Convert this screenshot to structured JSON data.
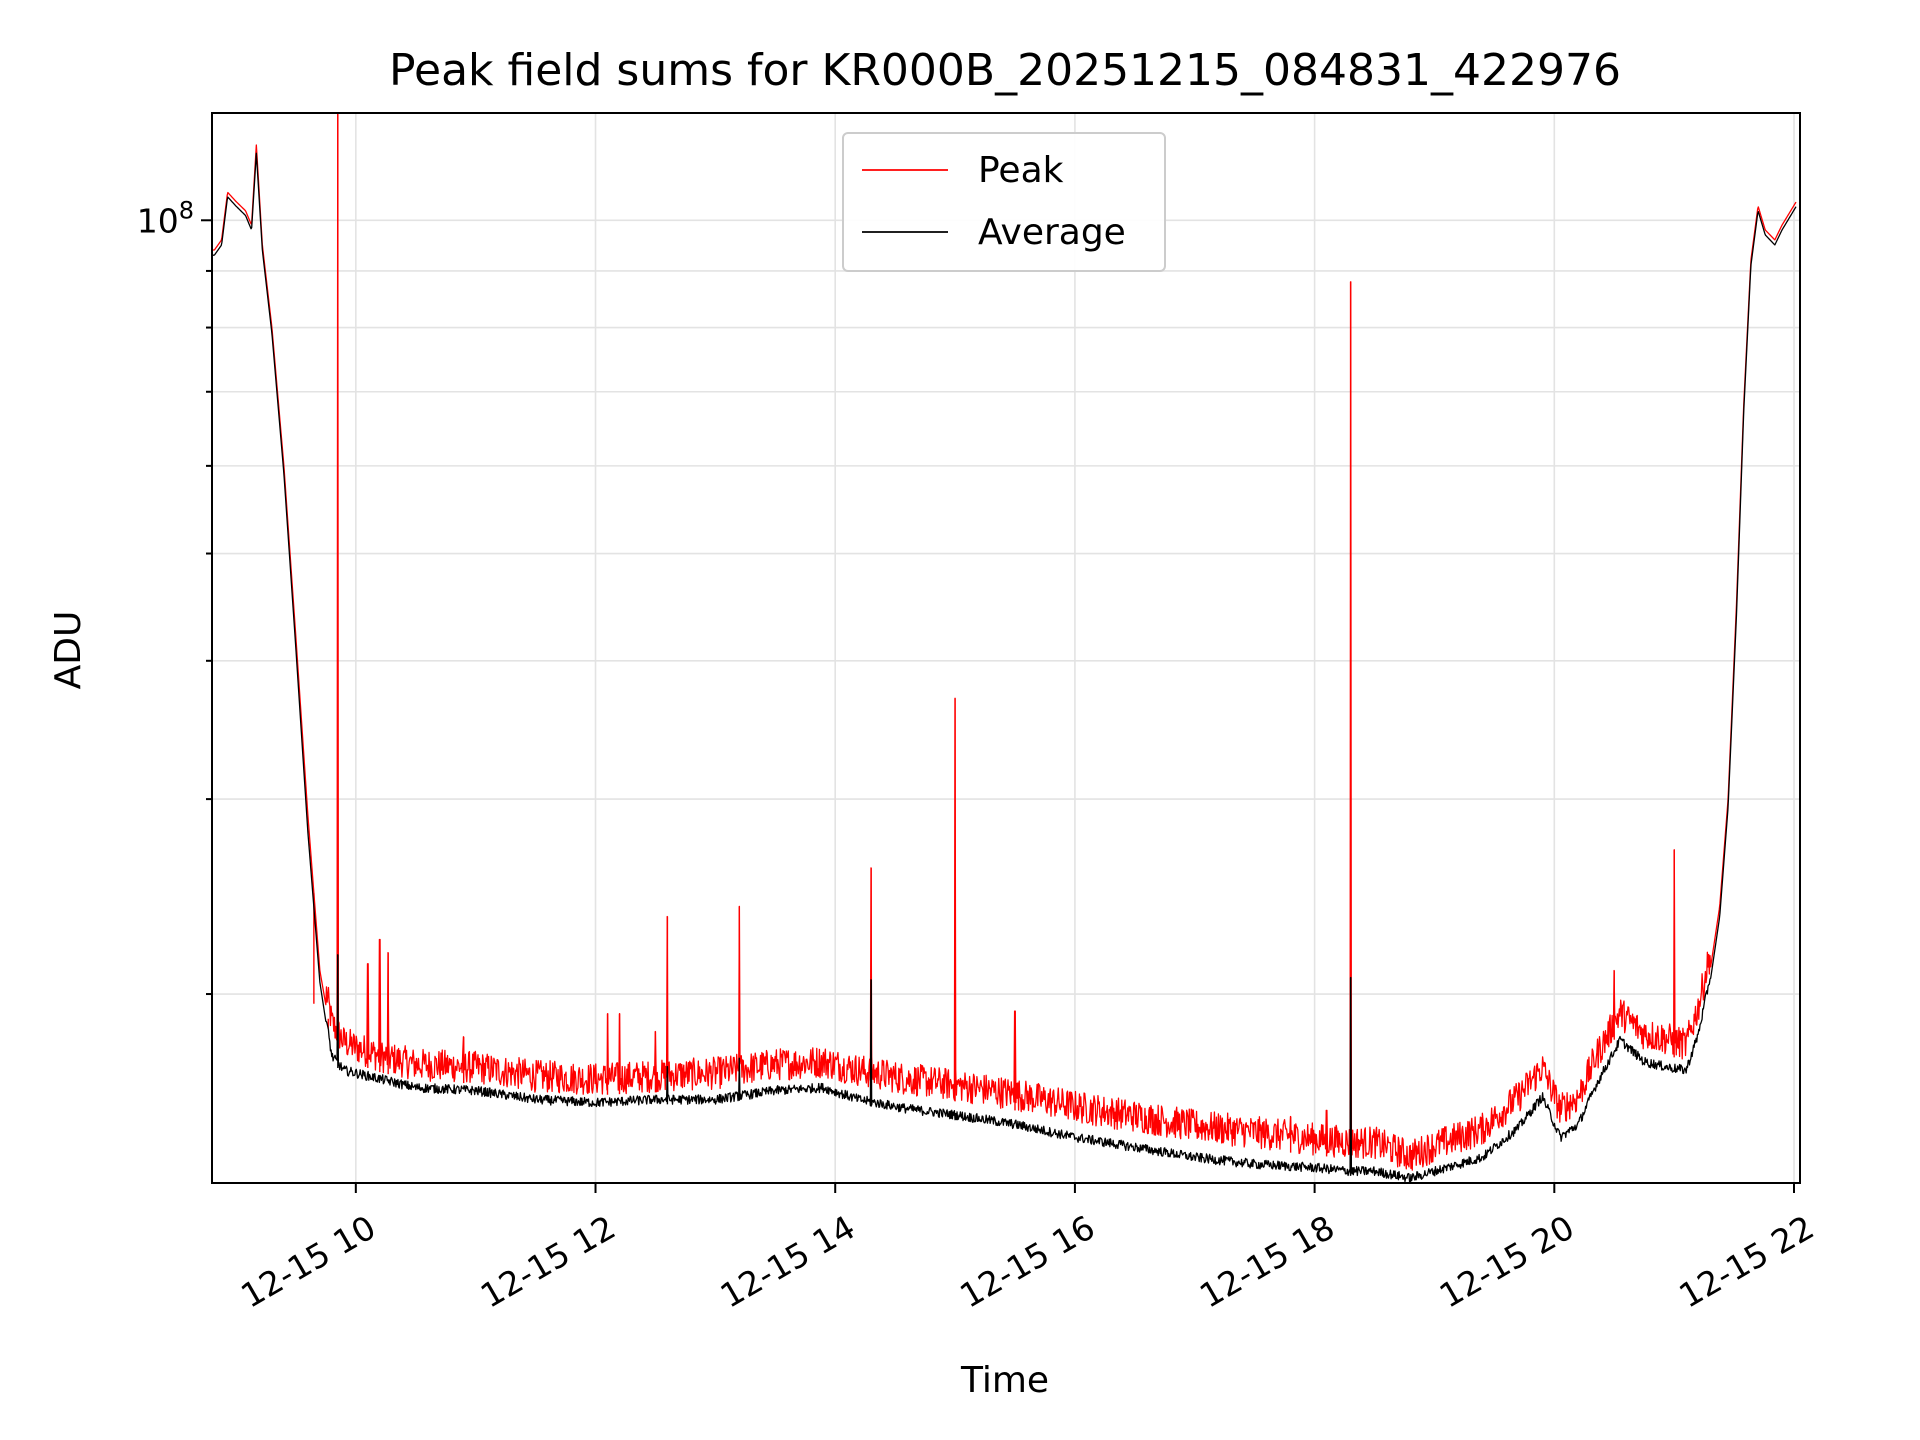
{
  "chart_data": {
    "type": "line",
    "title": "Peak field sums for KR000B_20251215_084831_422976",
    "xlabel": "Time",
    "ylabel": "ADU",
    "yscale": "log",
    "xlim_hours": [
      8.8,
      22.05
    ],
    "ylim": [
      13500000,
      125000000
    ],
    "x_ticks": [
      {
        "hour": 10,
        "label": "12-15 10"
      },
      {
        "hour": 12,
        "label": "12-15 12"
      },
      {
        "hour": 14,
        "label": "12-15 14"
      },
      {
        "hour": 16,
        "label": "12-15 16"
      },
      {
        "hour": 18,
        "label": "12-15 18"
      },
      {
        "hour": 20,
        "label": "12-15 20"
      },
      {
        "hour": 22,
        "label": "12-15 22"
      }
    ],
    "y_major_ticks": [
      {
        "value": 100000000,
        "base": "10",
        "exponent": "8"
      }
    ],
    "y_minor_ticks": [
      20000000,
      30000000,
      40000000,
      50000000,
      60000000,
      70000000,
      80000000,
      90000000
    ],
    "legend": {
      "position": "upper center",
      "entries": [
        "Peak",
        "Average"
      ]
    },
    "series": [
      {
        "name": "Peak",
        "color": "#ff0000",
        "baseline": [
          [
            8.82,
            94000000
          ],
          [
            8.88,
            96000000
          ],
          [
            8.93,
            106000000
          ],
          [
            9.0,
            104000000
          ],
          [
            9.08,
            102000000
          ],
          [
            9.13,
            99000000
          ],
          [
            9.17,
            117000000
          ],
          [
            9.22,
            95000000
          ],
          [
            9.3,
            80000000
          ],
          [
            9.4,
            60000000
          ],
          [
            9.5,
            42000000
          ],
          [
            9.6,
            29000000
          ],
          [
            9.7,
            21000000
          ],
          [
            9.8,
            18200000
          ],
          [
            9.9,
            17500000
          ],
          [
            10.0,
            17300000
          ],
          [
            10.2,
            17000000
          ],
          [
            10.5,
            16700000
          ],
          [
            11.0,
            16600000
          ],
          [
            11.5,
            16300000
          ],
          [
            12.0,
            16200000
          ],
          [
            12.5,
            16300000
          ],
          [
            13.0,
            16400000
          ],
          [
            13.5,
            16700000
          ],
          [
            13.9,
            16800000
          ],
          [
            14.2,
            16500000
          ],
          [
            14.6,
            16200000
          ],
          [
            15.0,
            16000000
          ],
          [
            15.5,
            15700000
          ],
          [
            16.0,
            15300000
          ],
          [
            16.5,
            15000000
          ],
          [
            17.0,
            14700000
          ],
          [
            17.5,
            14500000
          ],
          [
            18.0,
            14300000
          ],
          [
            18.3,
            14200000
          ],
          [
            18.5,
            14200000
          ],
          [
            18.8,
            13800000
          ],
          [
            19.0,
            14100000
          ],
          [
            19.4,
            14600000
          ],
          [
            19.7,
            15600000
          ],
          [
            19.9,
            16600000
          ],
          [
            20.05,
            15200000
          ],
          [
            20.2,
            15600000
          ],
          [
            20.35,
            17000000
          ],
          [
            20.55,
            18600000
          ],
          [
            20.75,
            17800000
          ],
          [
            20.95,
            17600000
          ],
          [
            21.1,
            17400000
          ],
          [
            21.2,
            18800000
          ],
          [
            21.3,
            21000000
          ],
          [
            21.38,
            24000000
          ],
          [
            21.45,
            30000000
          ],
          [
            21.52,
            45000000
          ],
          [
            21.58,
            68000000
          ],
          [
            21.64,
            92000000
          ],
          [
            21.7,
            103000000
          ],
          [
            21.76,
            98000000
          ],
          [
            21.84,
            96000000
          ],
          [
            21.9,
            99000000
          ],
          [
            22.02,
            104000000
          ]
        ],
        "spikes": [
          [
            9.85,
            125000000
          ],
          [
            18.3,
            88000000
          ],
          [
            15.0,
            37000000
          ],
          [
            14.3,
            26000000
          ],
          [
            13.2,
            24000000
          ],
          [
            12.6,
            23500000
          ],
          [
            21.0,
            27000000
          ],
          [
            15.5,
            19300000
          ],
          [
            10.2,
            22400000
          ],
          [
            10.1,
            21300000
          ],
          [
            10.27,
            21800000
          ],
          [
            9.65,
            19600000
          ],
          [
            9.77,
            18600000
          ],
          [
            12.1,
            19200000
          ],
          [
            12.2,
            19200000
          ],
          [
            12.5,
            18500000
          ],
          [
            10.9,
            18300000
          ],
          [
            20.5,
            21000000
          ],
          [
            18.1,
            15700000
          ],
          [
            17.8,
            15500000
          ]
        ]
      },
      {
        "name": "Average",
        "color": "#000000",
        "baseline": [
          [
            8.82,
            93000000
          ],
          [
            8.88,
            95000000
          ],
          [
            8.93,
            105000000
          ],
          [
            9.0,
            103000000
          ],
          [
            9.08,
            101000000
          ],
          [
            9.13,
            98000000
          ],
          [
            9.17,
            115000000
          ],
          [
            9.22,
            94000000
          ],
          [
            9.3,
            79000000
          ],
          [
            9.4,
            59000000
          ],
          [
            9.5,
            41000000
          ],
          [
            9.6,
            28000000
          ],
          [
            9.7,
            20500000
          ],
          [
            9.8,
            17400000
          ],
          [
            9.9,
            16900000
          ],
          [
            10.0,
            16800000
          ],
          [
            10.2,
            16600000
          ],
          [
            10.5,
            16300000
          ],
          [
            11.0,
            16200000
          ],
          [
            11.5,
            15900000
          ],
          [
            12.0,
            15800000
          ],
          [
            12.5,
            15900000
          ],
          [
            13.0,
            15900000
          ],
          [
            13.5,
            16200000
          ],
          [
            13.9,
            16300000
          ],
          [
            14.2,
            15900000
          ],
          [
            14.6,
            15600000
          ],
          [
            15.0,
            15400000
          ],
          [
            15.5,
            15100000
          ],
          [
            16.0,
            14700000
          ],
          [
            16.5,
            14400000
          ],
          [
            17.0,
            14100000
          ],
          [
            17.5,
            13900000
          ],
          [
            18.0,
            13800000
          ],
          [
            18.3,
            13700000
          ],
          [
            18.5,
            13700000
          ],
          [
            18.8,
            13500000
          ],
          [
            19.0,
            13700000
          ],
          [
            19.4,
            14100000
          ],
          [
            19.7,
            15000000
          ],
          [
            19.9,
            16000000
          ],
          [
            20.05,
            14700000
          ],
          [
            20.2,
            15100000
          ],
          [
            20.35,
            16400000
          ],
          [
            20.55,
            18000000
          ],
          [
            20.75,
            17200000
          ],
          [
            20.95,
            17000000
          ],
          [
            21.1,
            16900000
          ],
          [
            21.2,
            18200000
          ],
          [
            21.3,
            20500000
          ],
          [
            21.38,
            23500000
          ],
          [
            21.45,
            29500000
          ],
          [
            21.52,
            44000000
          ],
          [
            21.58,
            67000000
          ],
          [
            21.64,
            91000000
          ],
          [
            21.7,
            102000000
          ],
          [
            21.76,
            97000000
          ],
          [
            21.84,
            95000000
          ],
          [
            21.9,
            98000000
          ],
          [
            22.02,
            103000000
          ]
        ],
        "spikes": [
          [
            9.85,
            21700000
          ],
          [
            18.3,
            20700000
          ],
          [
            14.3,
            20600000
          ],
          [
            13.2,
            17500000
          ],
          [
            12.6,
            17200000
          ]
        ]
      }
    ]
  }
}
